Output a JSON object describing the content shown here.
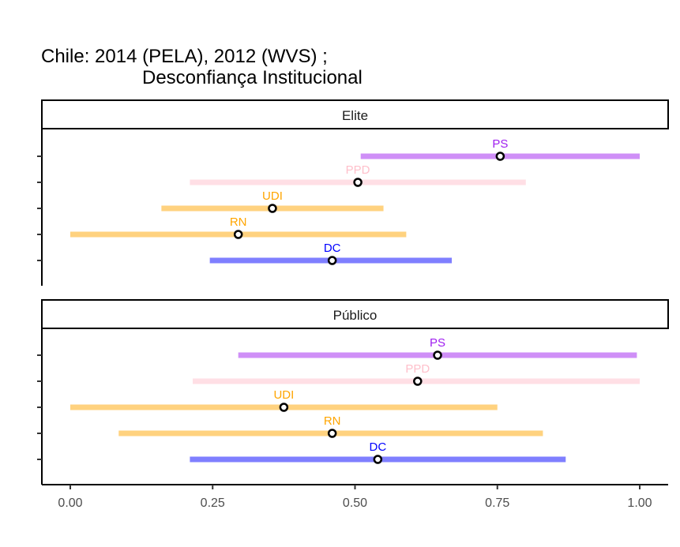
{
  "chart_data": {
    "type": "dot-interval",
    "title_line1": "Chile: 2014 (PELA), 2012 (WVS) ;",
    "title_line2": "Desconfiança Institucional",
    "xlabel": "",
    "ylabel": "",
    "xlim": [
      0,
      1
    ],
    "x_ticks": [
      0,
      0.25,
      0.5,
      0.75,
      1
    ],
    "x_tick_labels": [
      "0.00",
      "0.25",
      "0.50",
      "0.75",
      "1.00"
    ],
    "grid": false,
    "legend": "none",
    "panels": [
      {
        "label": "Elite",
        "rows": [
          {
            "party": "PS",
            "color": "#a020f0",
            "point": 0.755,
            "low": 0.51,
            "high": 1.0
          },
          {
            "party": "PPD",
            "color": "#ffc0cb",
            "point": 0.505,
            "low": 0.21,
            "high": 0.8
          },
          {
            "party": "UDI",
            "color": "#ffa500",
            "point": 0.355,
            "low": 0.16,
            "high": 0.55
          },
          {
            "party": "RN",
            "color": "#ffa500",
            "point": 0.295,
            "low": 0.0,
            "high": 0.59
          },
          {
            "party": "DC",
            "color": "#0000ff",
            "point": 0.46,
            "low": 0.245,
            "high": 0.67
          }
        ]
      },
      {
        "label": "Público",
        "rows": [
          {
            "party": "PS",
            "color": "#a020f0",
            "point": 0.645,
            "low": 0.295,
            "high": 0.995
          },
          {
            "party": "PPD",
            "color": "#ffc0cb",
            "point": 0.61,
            "low": 0.215,
            "high": 1.0
          },
          {
            "party": "UDI",
            "color": "#ffa500",
            "point": 0.375,
            "low": 0.0,
            "high": 0.75
          },
          {
            "party": "RN",
            "color": "#ffa500",
            "point": 0.46,
            "low": 0.085,
            "high": 0.83
          },
          {
            "party": "DC",
            "color": "#0000ff",
            "point": 0.54,
            "low": 0.21,
            "high": 0.87
          }
        ]
      }
    ]
  }
}
